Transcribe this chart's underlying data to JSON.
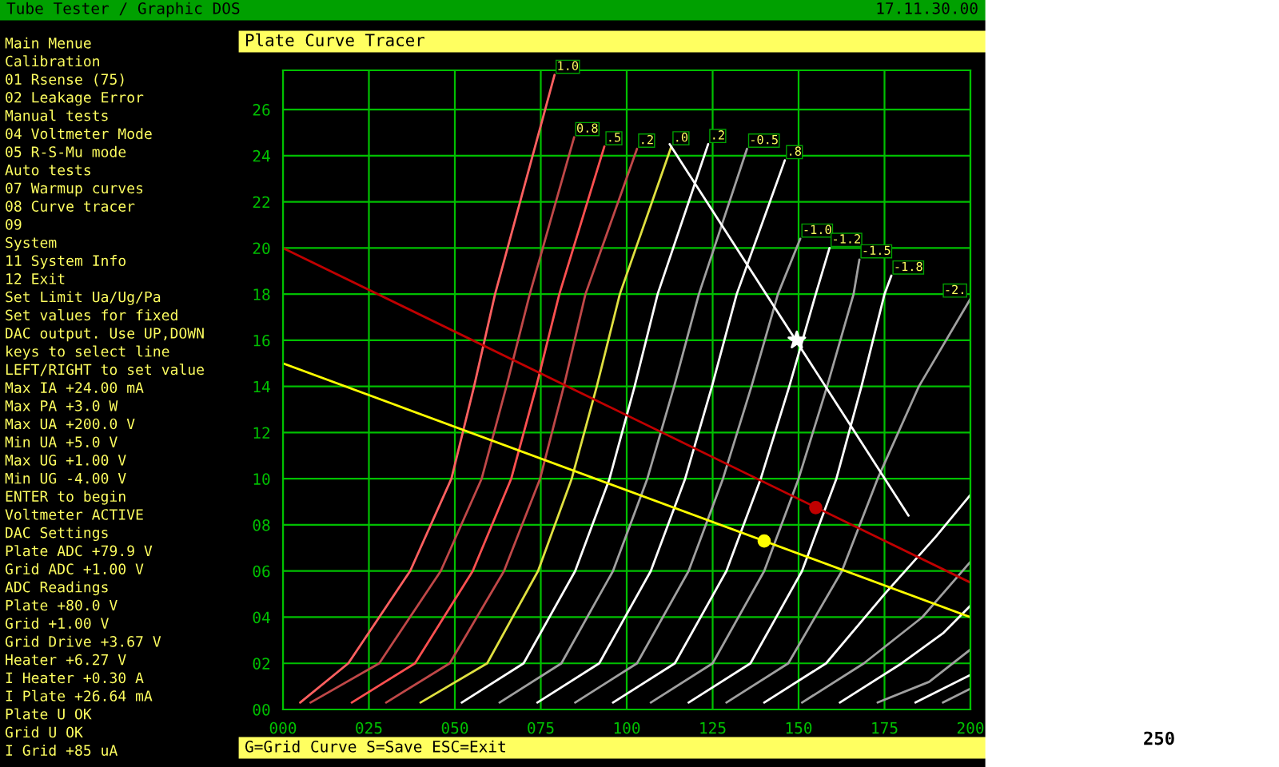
{
  "chart_data": {
    "type": "line",
    "title": "Plate Curve Tracer",
    "xlim": [
      0,
      200
    ],
    "ylim": [
      0,
      27.7
    ],
    "xticks": [
      {
        "value": 0,
        "label": "000"
      },
      {
        "value": 25,
        "label": "025"
      },
      {
        "value": 50,
        "label": "050"
      },
      {
        "value": 75,
        "label": "075"
      },
      100,
      125,
      150,
      175,
      200
    ],
    "yticks": [
      {
        "value": 0,
        "label": "00"
      },
      {
        "value": 2,
        "label": "02"
      },
      {
        "value": 4,
        "label": "04"
      },
      {
        "value": 6,
        "label": "06"
      },
      {
        "value": 8,
        "label": "08"
      },
      10,
      12,
      14,
      16,
      18,
      20,
      22,
      24,
      26
    ],
    "grid": true,
    "series": [
      {
        "name": "1.0",
        "color": "#ff6060",
        "x": [
          5,
          19,
          37,
          49,
          55.6,
          61.7,
          79
        ],
        "values": [
          0.3,
          2,
          6,
          10,
          14,
          18,
          27.5
        ]
      },
      {
        "name": "0.8",
        "color": "#c04848",
        "x": [
          8,
          28,
          45.9,
          57.8,
          65,
          71.8,
          84.7
        ],
        "values": [
          0.3,
          2,
          6,
          10,
          14,
          18,
          24.8
        ]
      },
      {
        "name": ".5",
        "color": "#ff5050",
        "x": [
          20,
          38.4,
          55.2,
          66.4,
          73.7,
          80.4,
          93.5
        ],
        "values": [
          0.3,
          2,
          6,
          10,
          14,
          18,
          24.4
        ]
      },
      {
        "name": ".2",
        "color": "#c04848",
        "x": [
          30,
          48.5,
          64.3,
          74.8,
          81.7,
          88,
          103
        ],
        "values": [
          0.3,
          2,
          6,
          10,
          14,
          18,
          24.3
        ]
      },
      {
        "name": ".0",
        "color": "#e0e040",
        "x": [
          40,
          59.4,
          74.2,
          84,
          91.3,
          98,
          113
        ],
        "values": [
          0.3,
          2,
          6,
          10,
          14,
          18,
          24.4
        ]
      },
      {
        "name": ".2",
        "color": "#ffffff",
        "x": [
          52,
          70,
          85,
          95,
          102.3,
          109,
          123.7
        ],
        "values": [
          0.3,
          2,
          6,
          10,
          14,
          18,
          24.5
        ]
      },
      {
        "name": "-0.5",
        "color": "#a0a0a0",
        "x": [
          63,
          81,
          96,
          106,
          113.8,
          121,
          135
        ],
        "values": [
          0.3,
          2,
          6,
          10,
          14,
          18,
          24.3
        ]
      },
      {
        "name": ".8",
        "color": "#ffffff",
        "x": [
          74,
          92,
          107,
          117,
          124.8,
          132,
          146
        ],
        "values": [
          0.3,
          2,
          6,
          10,
          14,
          18,
          23.8
        ]
      },
      {
        "name": "-1.0",
        "color": "#a0a0a0",
        "x": [
          85,
          103,
          118,
          128,
          136.3,
          144,
          150.5
        ],
        "values": [
          0.3,
          2,
          6,
          10,
          14,
          18,
          20.4
        ]
      },
      {
        "name": "-1.2",
        "color": "#ffffff",
        "x": [
          96,
          114,
          129,
          139,
          147.3,
          155,
          159
        ],
        "values": [
          0.3,
          2,
          6,
          10,
          14,
          18,
          20
        ]
      },
      {
        "name": "-1.5",
        "color": "#a0a0a0",
        "x": [
          107,
          125,
          140,
          150,
          158.3,
          166,
          167.7
        ],
        "values": [
          0.3,
          2,
          6,
          10,
          14,
          18,
          19.5
        ]
      },
      {
        "name": "-1.8",
        "color": "#ffffff",
        "x": [
          118,
          136,
          151,
          161,
          168.3,
          175,
          177
        ],
        "values": [
          0.3,
          2,
          6,
          10,
          14,
          18,
          18.8
        ]
      },
      {
        "name": "-2.",
        "color": "#a0a0a0",
        "x": [
          129,
          147,
          162.6,
          173,
          185,
          200
        ],
        "values": [
          0.3,
          2,
          6,
          10,
          14,
          17.8
        ]
      },
      {
        "color": "#ffffff",
        "x": [
          140,
          158,
          175,
          190,
          200
        ],
        "values": [
          0.3,
          2,
          5,
          7.5,
          9.3
        ]
      },
      {
        "color": "#a0a0a0",
        "x": [
          151,
          169,
          186,
          200
        ],
        "values": [
          0.3,
          2,
          4,
          6.4
        ]
      },
      {
        "color": "#ffffff",
        "x": [
          162,
          180,
          192,
          200
        ],
        "values": [
          0.3,
          2,
          3.3,
          4.5
        ]
      },
      {
        "color": "#a0a0a0",
        "x": [
          173,
          188,
          200
        ],
        "values": [
          0.3,
          1.2,
          2.6
        ]
      },
      {
        "color": "#ffffff",
        "x": [
          184,
          200
        ],
        "values": [
          0.3,
          1.5
        ]
      },
      {
        "color": "#a0a0a0",
        "x": [
          192,
          200
        ],
        "values": [
          0.3,
          0.9
        ]
      },
      {
        "color": "#c00000",
        "x": [
          0,
          200
        ],
        "values": [
          20,
          5.5
        ]
      },
      {
        "color": "#ffff00",
        "x": [
          0,
          200
        ],
        "values": [
          15,
          4.0
        ]
      },
      {
        "color": "#ffffff",
        "x": [
          112.5,
          182
        ],
        "values": [
          24.5,
          8.4
        ]
      },
      {
        "type": "scatter",
        "marker": "circle",
        "color": "#c00000",
        "x": [
          155
        ],
        "values": [
          8.75
        ]
      },
      {
        "type": "scatter",
        "marker": "circle",
        "color": "#ffff00",
        "x": [
          140
        ],
        "values": [
          7.3
        ]
      },
      {
        "type": "scatter",
        "marker": "star",
        "color": "#ffffff",
        "x": [
          149.5
        ],
        "values": [
          16
        ]
      }
    ],
    "annotations": [
      "Tube Tester / Graphic DOS",
      "17.11.30.00",
      "Main Menue",
      "Calibration",
      "01 Rsense (75)",
      "02 Leakage Error",
      "Manual tests",
      "04 Voltmeter Mode",
      "05 R-S-Mu mode",
      "Auto tests",
      "07 Warmup curves",
      "08 Curve tracer",
      "09",
      "System",
      "11 System Info",
      "12 Exit",
      "Set Limit Ua/Ug/Pa",
      "Set values for fixed",
      "DAC output. Use UP,DOWN",
      "keys to select line",
      "LEFT/RIGHT to set value",
      "Max IA +24.00 mA",
      "Max PA +3.0 W",
      "Max UA +200.0 V",
      "Min UA +5.0 V",
      "Max UG +1.00 V",
      "Min UG -4.00 V",
      "ENTER to begin",
      "Voltmeter ACTIVE",
      "DAC Settings",
      "Plate ADC +79.9 V",
      "Grid ADC +1.00 V",
      "ADC Readings",
      "Plate +80.0 V",
      "Grid +1.00 V",
      "Grid Drive +3.67 V",
      "Heater +6.27 V",
      "I Heater +0.30 A",
      "I Plate +26.64 mA",
      "Plate U OK",
      "Grid U OK",
      "I Grid +85 uA",
      "G=Grid Curve S=Save ESC=Exit",
      "250"
    ]
  }
}
